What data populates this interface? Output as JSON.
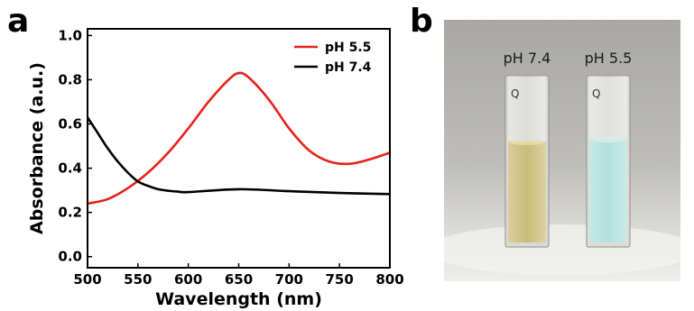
{
  "panels": {
    "a": "a",
    "b": "b"
  },
  "chart_data": {
    "type": "line",
    "xlabel": "Wavelength (nm)",
    "ylabel": "Absorbance (a.u.)",
    "xlim": [
      500,
      800
    ],
    "ylim": [
      -0.05,
      1.03
    ],
    "x_ticks": [
      500,
      550,
      600,
      650,
      700,
      750,
      800
    ],
    "y_ticks": [
      0.0,
      0.2,
      0.4,
      0.6,
      0.8,
      1.0
    ],
    "y_tick_labels": [
      "0.0",
      "0.2",
      "0.4",
      "0.6",
      "0.8",
      "1.0"
    ],
    "grid": false,
    "legend_position": "top-right",
    "series": [
      {
        "name": "pH 5.5",
        "color": "#e8201a",
        "x": [
          500,
          520,
          540,
          560,
          580,
          600,
          620,
          640,
          650,
          660,
          680,
          700,
          720,
          740,
          760,
          780,
          800
        ],
        "y": [
          0.24,
          0.26,
          0.31,
          0.38,
          0.47,
          0.58,
          0.7,
          0.8,
          0.83,
          0.81,
          0.71,
          0.58,
          0.48,
          0.43,
          0.42,
          0.44,
          0.47
        ]
      },
      {
        "name": "pH 7.4",
        "color": "#000000",
        "x": [
          500,
          510,
          520,
          530,
          540,
          550,
          560,
          570,
          580,
          590,
          600,
          650,
          700,
          750,
          800
        ],
        "y": [
          0.63,
          0.56,
          0.49,
          0.43,
          0.38,
          0.34,
          0.32,
          0.305,
          0.298,
          0.294,
          0.292,
          0.305,
          0.296,
          0.288,
          0.283
        ]
      }
    ]
  },
  "photo": {
    "left_label": "pH 7.4",
    "right_label": "pH 5.5",
    "cuvette_mark": "Q",
    "left_liquid_color": "#c7b36a",
    "right_liquid_color": "#a9dcda"
  }
}
